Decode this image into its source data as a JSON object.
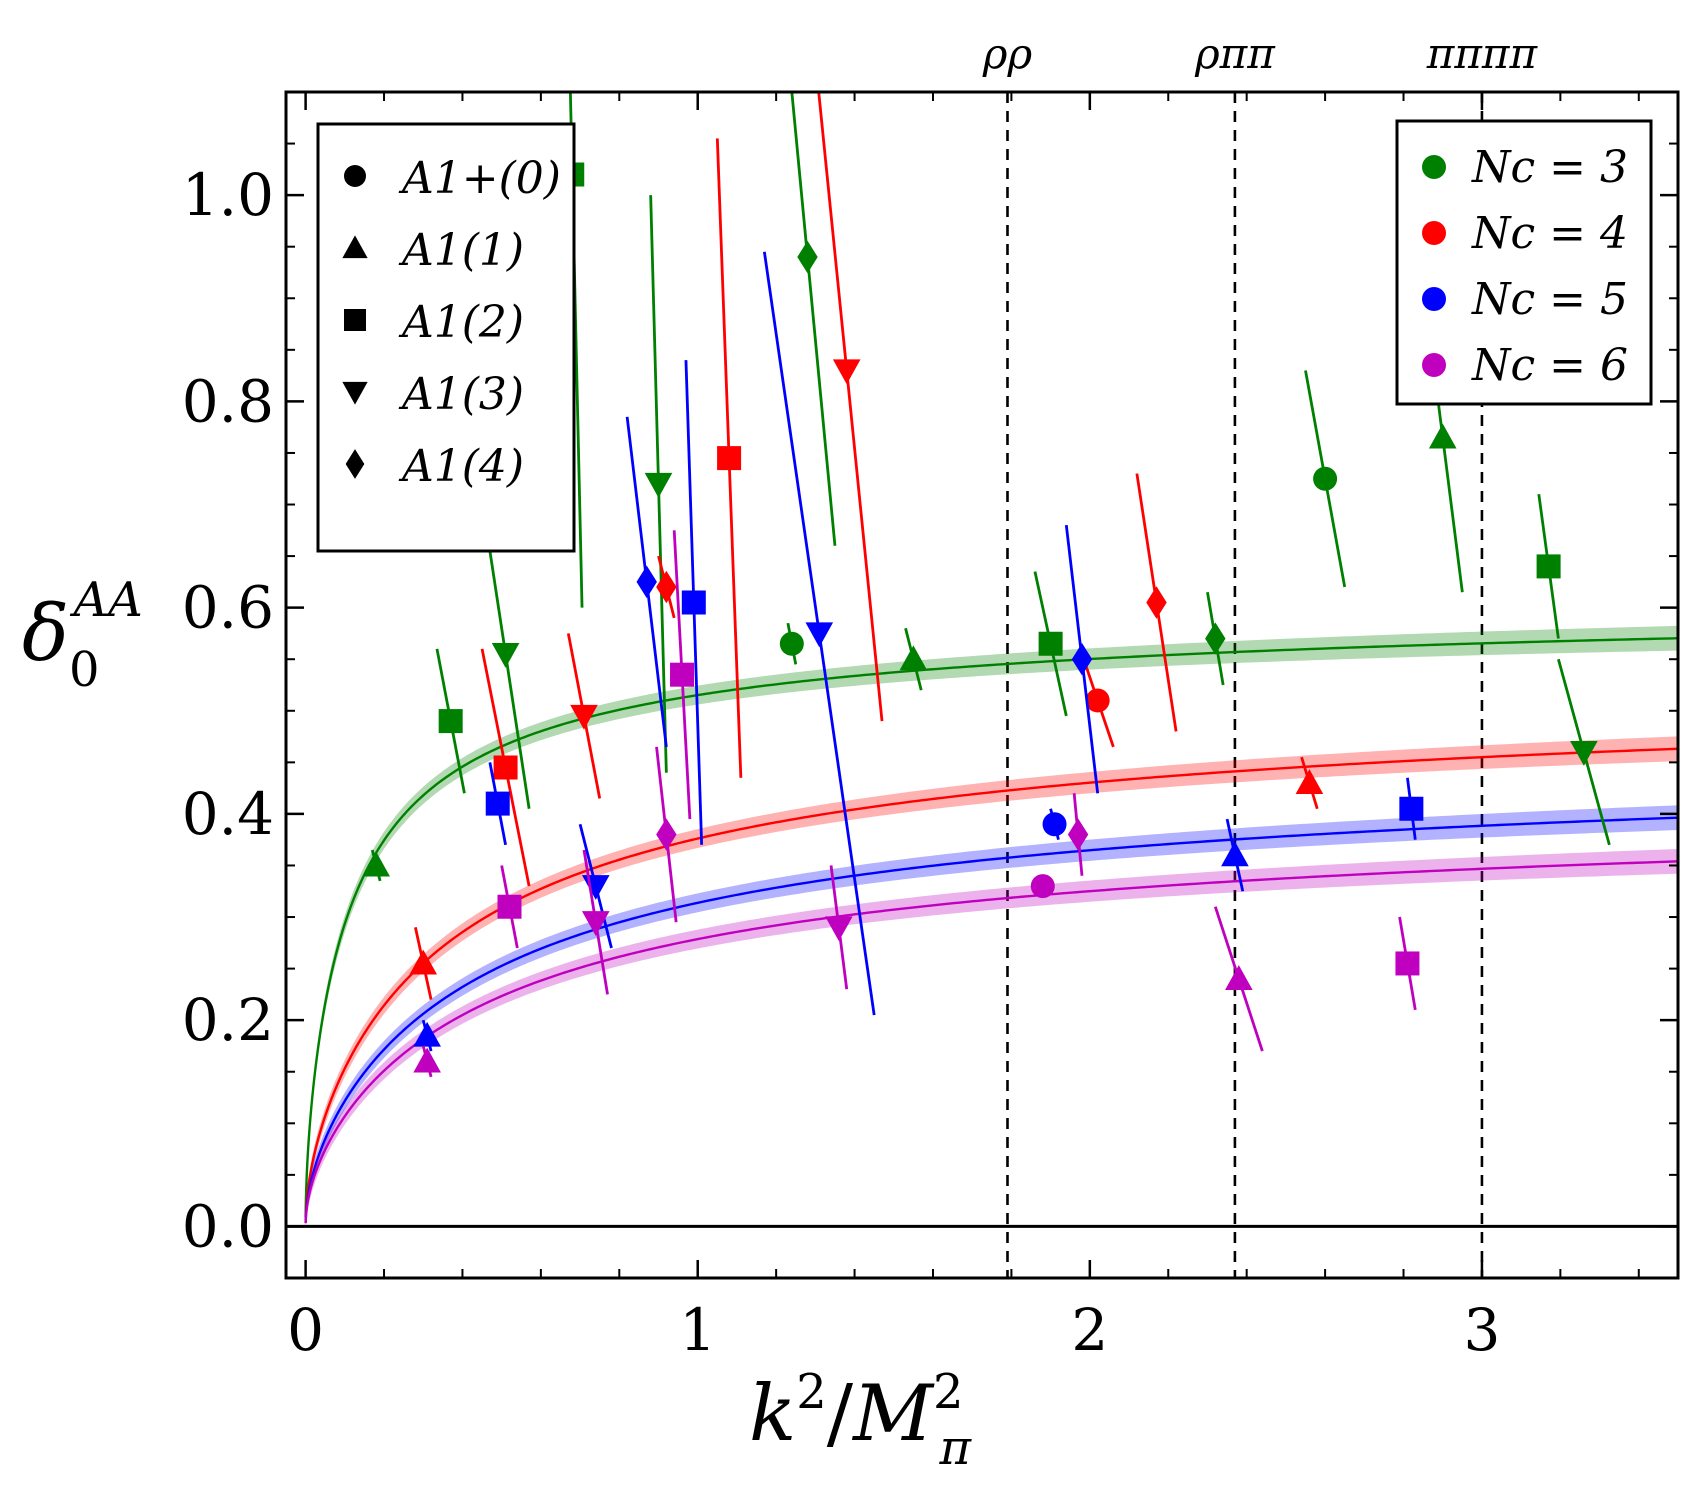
{
  "chart_data": {
    "type": "scatter",
    "xlabel": "k²/M²π",
    "ylabel": "δ₀^AA",
    "xlim": [
      -0.05,
      3.5
    ],
    "ylim": [
      -0.05,
      1.1
    ],
    "xticks": [
      "0",
      "1",
      "2",
      "3"
    ],
    "yticks": [
      "0.0",
      "0.2",
      "0.4",
      "0.6",
      "0.8",
      "1.0"
    ],
    "thresholds": [
      {
        "label": "ρρ",
        "x": 1.79
      },
      {
        "label": "ρππ",
        "x": 2.37
      },
      {
        "label": "ππππ",
        "x": 3.0
      }
    ],
    "shape_legend": [
      {
        "shape": "circle",
        "label": "A1+(0)"
      },
      {
        "shape": "triangle-up",
        "label": "A1(1)"
      },
      {
        "shape": "square",
        "label": "A1(2)"
      },
      {
        "shape": "triangle-down",
        "label": "A1(3)"
      },
      {
        "shape": "diamond",
        "label": "A1(4)"
      }
    ],
    "series": [
      {
        "name": "Nc = 3",
        "color": "#008000",
        "fit_asymptote": 0.63,
        "fit_scale": 0.12,
        "points": [
          {
            "shape": "triangle-up",
            "x": 0.18,
            "y": 0.35,
            "dx": 0.01,
            "dy": 0.015
          },
          {
            "shape": "square",
            "x": 0.37,
            "y": 0.49,
            "dx": 0.035,
            "dy": 0.07
          },
          {
            "shape": "triangle-down",
            "x": 0.51,
            "y": 0.555,
            "dx": 0.06,
            "dy": 0.15
          },
          {
            "shape": "square",
            "x": 0.68,
            "y": 1.02,
            "dx": 0.025,
            "dy": 0.42
          },
          {
            "shape": "triangle-down",
            "x": 0.9,
            "y": 0.72,
            "dx": 0.02,
            "dy": 0.28
          },
          {
            "shape": "circle",
            "x": 1.24,
            "y": 0.565,
            "dx": 0.01,
            "dy": 0.02
          },
          {
            "shape": "diamond",
            "x": 1.28,
            "y": 0.94,
            "dx": 0.07,
            "dy": 0.28
          },
          {
            "shape": "triangle-up",
            "x": 1.55,
            "y": 0.55,
            "dx": 0.02,
            "dy": 0.03
          },
          {
            "shape": "square",
            "x": 1.9,
            "y": 0.565,
            "dx": 0.04,
            "dy": 0.07
          },
          {
            "shape": "diamond",
            "x": 2.32,
            "y": 0.57,
            "dx": 0.02,
            "dy": 0.045
          },
          {
            "shape": "circle",
            "x": 2.6,
            "y": 0.725,
            "dx": 0.05,
            "dy": 0.105
          },
          {
            "shape": "triangle-up",
            "x": 2.9,
            "y": 0.765,
            "dx": 0.05,
            "dy": 0.15
          },
          {
            "shape": "square",
            "x": 3.17,
            "y": 0.64,
            "dx": 0.025,
            "dy": 0.07
          },
          {
            "shape": "triangle-down",
            "x": 3.26,
            "y": 0.46,
            "dx": 0.065,
            "dy": 0.09
          }
        ]
      },
      {
        "name": "Nc = 4",
        "color": "#ff0000",
        "fit_asymptote": 0.56,
        "fit_scale": 0.38,
        "points": [
          {
            "shape": "triangle-up",
            "x": 0.3,
            "y": 0.255,
            "dx": 0.02,
            "dy": 0.035
          },
          {
            "shape": "square",
            "x": 0.51,
            "y": 0.445,
            "dx": 0.06,
            "dy": 0.115
          },
          {
            "shape": "triangle-down",
            "x": 0.71,
            "y": 0.495,
            "dx": 0.04,
            "dy": 0.08
          },
          {
            "shape": "diamond",
            "x": 0.92,
            "y": 0.62,
            "dx": 0.02,
            "dy": 0.03
          },
          {
            "shape": "square",
            "x": 1.08,
            "y": 0.745,
            "dx": 0.03,
            "dy": 0.31
          },
          {
            "shape": "triangle-down",
            "x": 1.38,
            "y": 0.83,
            "dx": 0.09,
            "dy": 0.34
          },
          {
            "shape": "circle",
            "x": 2.02,
            "y": 0.51,
            "dx": 0.04,
            "dy": 0.045
          },
          {
            "shape": "diamond",
            "x": 2.17,
            "y": 0.605,
            "dx": 0.05,
            "dy": 0.125
          },
          {
            "shape": "triangle-up",
            "x": 2.56,
            "y": 0.43,
            "dx": 0.02,
            "dy": 0.025
          }
        ]
      },
      {
        "name": "Nc = 5",
        "color": "#0000ff",
        "fit_asymptote": 0.49,
        "fit_scale": 0.46,
        "points": [
          {
            "shape": "triangle-up",
            "x": 0.31,
            "y": 0.185,
            "dx": 0.01,
            "dy": 0.015
          },
          {
            "shape": "square",
            "x": 0.49,
            "y": 0.41,
            "dx": 0.02,
            "dy": 0.04
          },
          {
            "shape": "triangle-down",
            "x": 0.74,
            "y": 0.33,
            "dx": 0.04,
            "dy": 0.06
          },
          {
            "shape": "diamond",
            "x": 0.87,
            "y": 0.625,
            "dx": 0.05,
            "dy": 0.16
          },
          {
            "shape": "square",
            "x": 0.99,
            "y": 0.605,
            "dx": 0.02,
            "dy": 0.235
          },
          {
            "shape": "triangle-down",
            "x": 1.31,
            "y": 0.575,
            "dx": 0.14,
            "dy": 0.37
          },
          {
            "shape": "circle",
            "x": 1.91,
            "y": 0.39,
            "dx": 0.01,
            "dy": 0.015
          },
          {
            "shape": "diamond",
            "x": 1.98,
            "y": 0.55,
            "dx": 0.04,
            "dy": 0.13
          },
          {
            "shape": "triangle-up",
            "x": 2.37,
            "y": 0.36,
            "dx": 0.02,
            "dy": 0.035
          },
          {
            "shape": "square",
            "x": 2.82,
            "y": 0.405,
            "dx": 0.01,
            "dy": 0.03
          }
        ]
      },
      {
        "name": "Nc = 6",
        "color": "#bf00bf",
        "fit_asymptote": 0.44,
        "fit_scale": 0.48,
        "points": [
          {
            "shape": "triangle-up",
            "x": 0.31,
            "y": 0.16,
            "dx": 0.01,
            "dy": 0.015
          },
          {
            "shape": "square",
            "x": 0.52,
            "y": 0.31,
            "dx": 0.02,
            "dy": 0.04
          },
          {
            "shape": "triangle-down",
            "x": 0.74,
            "y": 0.295,
            "dx": 0.03,
            "dy": 0.07
          },
          {
            "shape": "diamond",
            "x": 0.92,
            "y": 0.38,
            "dx": 0.025,
            "dy": 0.085
          },
          {
            "shape": "square",
            "x": 0.96,
            "y": 0.535,
            "dx": 0.02,
            "dy": 0.14
          },
          {
            "shape": "triangle-down",
            "x": 1.36,
            "y": 0.29,
            "dx": 0.02,
            "dy": 0.06
          },
          {
            "shape": "circle",
            "x": 1.88,
            "y": 0.33,
            "dx": 0.01,
            "dy": 0.01
          },
          {
            "shape": "diamond",
            "x": 1.97,
            "y": 0.38,
            "dx": 0.01,
            "dy": 0.04
          },
          {
            "shape": "triangle-up",
            "x": 2.38,
            "y": 0.24,
            "dx": 0.06,
            "dy": 0.07
          },
          {
            "shape": "square",
            "x": 2.81,
            "y": 0.255,
            "dx": 0.02,
            "dy": 0.045
          }
        ]
      }
    ]
  }
}
